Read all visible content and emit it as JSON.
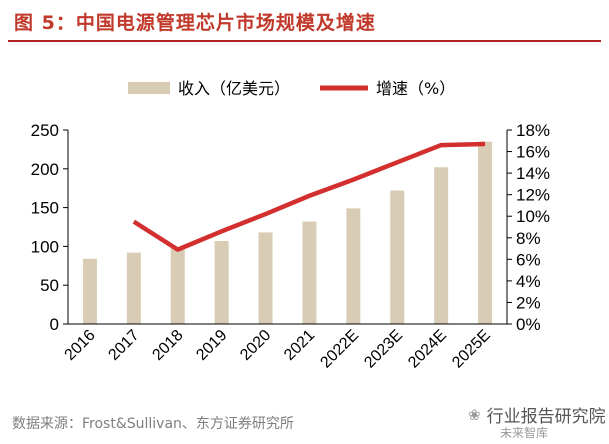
{
  "figure": {
    "title": "图 5：中国电源管理芯片市场规模及增速",
    "source": "数据来源：Frost&Sullivan、东方证券研究所",
    "watermark": "行业报告研究院",
    "watermark_sub": "未来智库"
  },
  "colors": {
    "bar": "#d8cdb4",
    "line": "#d32f2f",
    "title": "#c0392b",
    "axis": "#000000"
  },
  "chart_data": {
    "type": "bar",
    "categories": [
      "2016",
      "2017",
      "2018",
      "2019",
      "2020",
      "2021",
      "2022E",
      "2023E",
      "2024E",
      "2025E"
    ],
    "series": [
      {
        "name": "收入（亿美元）",
        "type": "bar",
        "axis": "left",
        "values": [
          84,
          92,
          98,
          107,
          118,
          132,
          149,
          172,
          202,
          235
        ]
      },
      {
        "name": "增速（%）",
        "type": "line",
        "axis": "right",
        "values": [
          null,
          9.5,
          6.9,
          8.6,
          10.2,
          11.9,
          13.4,
          15.0,
          16.6,
          16.7
        ]
      }
    ],
    "ylim_left": [
      0,
      250
    ],
    "yticks_left": [
      "0",
      "50",
      "100",
      "150",
      "200",
      "250"
    ],
    "ylim_right": [
      0,
      18
    ],
    "yticks_right": [
      "0%",
      "2%",
      "4%",
      "6%",
      "8%",
      "10%",
      "12%",
      "14%",
      "16%",
      "18%"
    ],
    "legend_position": "top-center",
    "grid": false
  }
}
